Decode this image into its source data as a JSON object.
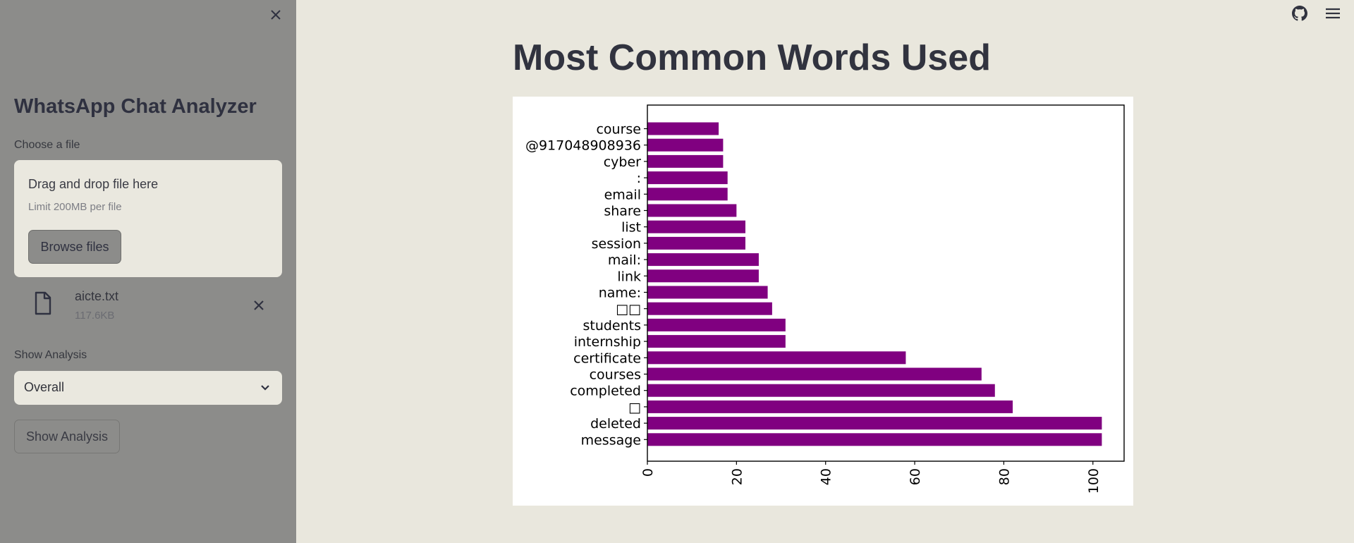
{
  "sidebar": {
    "title": "WhatsApp Chat Analyzer",
    "uploader": {
      "label": "Choose a file",
      "drag_text": "Drag and drop file here",
      "limit_text": "Limit 200MB per file",
      "browse_label": "Browse files"
    },
    "file": {
      "name": "aicte.txt",
      "size": "117.6KB"
    },
    "analysis": {
      "label": "Show Analysis",
      "selected": "Overall",
      "button_label": "Show Analysis"
    }
  },
  "main": {
    "title": "Most Common Words Used"
  },
  "colors": {
    "bar": "#800080",
    "sidebar_bg": "#8c8c8a",
    "page_bg": "#e9e7dd"
  },
  "icons": {
    "close": "close-icon",
    "github": "github-icon",
    "menu": "hamburger-menu-icon",
    "file": "file-icon"
  },
  "chart_data": {
    "type": "bar",
    "orientation": "horizontal",
    "categories": [
      "course",
      "@917048908936",
      "cyber",
      ":",
      "email",
      "share",
      "list",
      "session",
      "mail:",
      "link",
      "name:",
      "□□",
      "students",
      "internship",
      "certificate",
      "courses",
      "completed",
      "□",
      "deleted",
      "message"
    ],
    "values": [
      16,
      17,
      17,
      18,
      18,
      20,
      22,
      22,
      25,
      25,
      27,
      28,
      31,
      31,
      58,
      75,
      78,
      82,
      102,
      102
    ],
    "xlim": [
      0,
      107
    ],
    "xticks": [
      "0",
      "20",
      "40",
      "60",
      "80",
      "100"
    ],
    "xtick_values": [
      0,
      20,
      40,
      60,
      80,
      100
    ],
    "grid": false
  }
}
